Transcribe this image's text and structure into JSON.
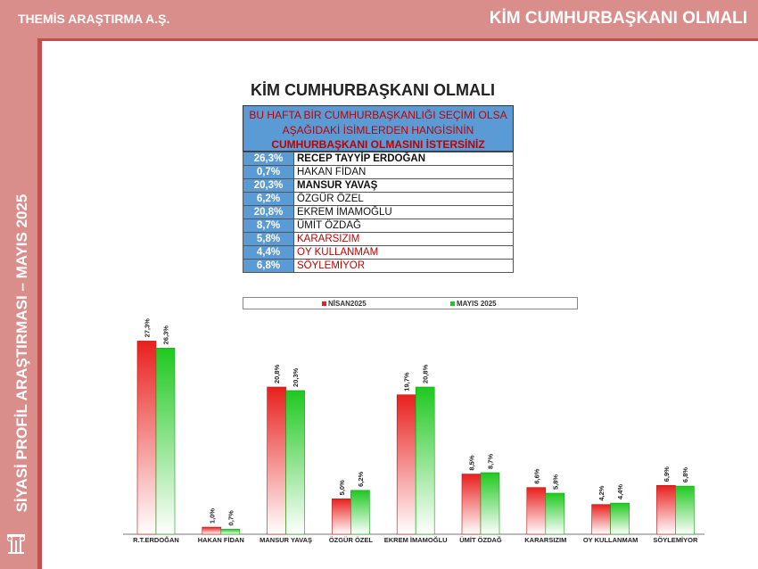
{
  "header": {
    "company": "THEMİS ARAŞTIRMA A.Ş.",
    "title": "KİM CUMHURBAŞKANI OLMALI"
  },
  "sidebar": {
    "text": "SİYASİ PROFİL ARAŞTIRMASI – MAYIS 2025"
  },
  "question": {
    "line1": "BU HAFTA BİR CUMHURBAŞKANLIĞI SEÇİMİ OLSA",
    "line2": "AŞAĞIDAKİ İSİMLERDEN HANGİSİNİN",
    "line3": "CUMHURBAŞKANI OLMASINI İSTERSİNİZ"
  },
  "table": [
    {
      "pct": "26,3%",
      "name": "RECEP TAYYİP ERDOĞAN"
    },
    {
      "pct": "0,7%",
      "name": "HAKAN FİDAN"
    },
    {
      "pct": "20,3%",
      "name": "MANSUR YAVAŞ"
    },
    {
      "pct": "6,2%",
      "name": "ÖZGÜR ÖZEL"
    },
    {
      "pct": "20,8%",
      "name": "EKREM İMAMOĞLU"
    },
    {
      "pct": "8,7%",
      "name": "ÜMİT ÖZDAĞ"
    },
    {
      "pct": "5,8%",
      "name": "KARARSIZIM"
    },
    {
      "pct": "4,4%",
      "name": "OY KULLANMAM"
    },
    {
      "pct": "6,8%",
      "name": "SÖYLEMİYOR"
    }
  ],
  "colors": {
    "accent": "#d98e8c",
    "table_blue": "#5b9bd5",
    "red_text": "#c00000",
    "nisan": "#e8201e",
    "mayis": "#1fc81f"
  },
  "chart_data": {
    "type": "bar",
    "title": "KİM CUMHURBAŞKANI OLMALI",
    "categories": [
      "R.T.ERDOĞAN",
      "HAKAN FİDAN",
      "MANSUR YAVAŞ",
      "ÖZGÜR ÖZEL",
      "EKREM İMAMOĞLU",
      "ÜMİT ÖZDAĞ",
      "KARARSIZIM",
      "OY KULLANMAM",
      "SÖYLEMİYOR"
    ],
    "series": [
      {
        "name": "NİSAN2025",
        "values": [
          27.3,
          1.0,
          20.8,
          5.0,
          19.7,
          8.5,
          6.6,
          4.2,
          6.9
        ],
        "labels": [
          "27,3%",
          "1,0%",
          "20,8%",
          "5,0%",
          "19,7%",
          "8,5%",
          "6,6%",
          "4,2%",
          "6,9%"
        ]
      },
      {
        "name": "MAYIS 2025",
        "values": [
          26.3,
          0.7,
          20.3,
          6.2,
          20.8,
          8.7,
          5.8,
          4.4,
          6.8
        ],
        "labels": [
          "26,3%",
          "0,7%",
          "20,3%",
          "6,2%",
          "20,8%",
          "8,7%",
          "5,8%",
          "4,4%",
          "6,8%"
        ]
      }
    ],
    "xlabel": "",
    "ylabel": "",
    "ylim": [
      0,
      28
    ],
    "grid": false,
    "legend": "top"
  }
}
